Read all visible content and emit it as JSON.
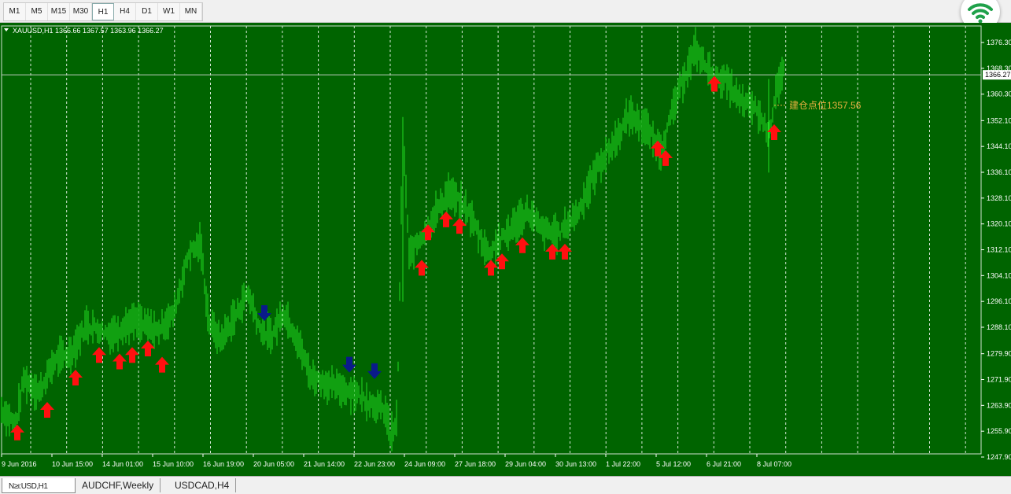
{
  "toolbar": {
    "timeframes": [
      "M1",
      "M5",
      "M15",
      "M30",
      "H1",
      "H4",
      "D1",
      "W1",
      "MN"
    ],
    "active_timeframe": "H1"
  },
  "chart": {
    "header": "XAUUSD,H1  1366.66 1367.57 1363.96 1366.27",
    "current_price_label": "1366.27",
    "annotation": "建仓点位1357.56",
    "colors": {
      "background": "#006400",
      "bars": "#22dd22",
      "grid": "#d8e8d8",
      "up_arrow": "#ff1010",
      "down_arrow": "#0a1a8a",
      "annotation": "#e8b040"
    }
  },
  "chart_data": {
    "type": "bar",
    "instrument": "XAUUSD",
    "timeframe": "H1",
    "ohlc_last": {
      "open": 1366.66,
      "high": 1367.57,
      "low": 1363.96,
      "close": 1366.27
    },
    "y_ticks": [
      "1376.30",
      "1368.30",
      "1360.30",
      "1352.10",
      "1344.10",
      "1336.10",
      "1328.10",
      "1320.10",
      "1312.10",
      "1304.10",
      "1296.10",
      "1288.10",
      "1279.90",
      "1271.90",
      "1263.90",
      "1255.90",
      "1247.90"
    ],
    "ylim": [
      1247.9,
      1376.3
    ],
    "x_ticks": [
      "9 Jun 2016",
      "10 Jun 15:00",
      "14 Jun 01:00",
      "15 Jun 10:00",
      "16 Jun 19:00",
      "20 Jun 05:00",
      "21 Jun 14:00",
      "22 Jun 23:00",
      "24 Jun 09:00",
      "27 Jun 18:00",
      "29 Jun 04:00",
      "30 Jun 13:00",
      "1 Jul 22:00",
      "5 Jul 12:00",
      "6 Jul 21:00",
      "8 Jul 07:00"
    ],
    "price_path": [
      [
        0,
        1263
      ],
      [
        20,
        1258
      ],
      [
        30,
        1272
      ],
      [
        50,
        1268
      ],
      [
        70,
        1278
      ],
      [
        90,
        1280
      ],
      [
        110,
        1289
      ],
      [
        140,
        1286
      ],
      [
        170,
        1290
      ],
      [
        200,
        1287
      ],
      [
        220,
        1292
      ],
      [
        240,
        1311
      ],
      [
        255,
        1314
      ],
      [
        265,
        1290
      ],
      [
        280,
        1284
      ],
      [
        300,
        1292
      ],
      [
        315,
        1299
      ],
      [
        330,
        1288
      ],
      [
        345,
        1285
      ],
      [
        360,
        1293
      ],
      [
        375,
        1286
      ],
      [
        395,
        1273
      ],
      [
        420,
        1270
      ],
      [
        450,
        1268
      ],
      [
        470,
        1265
      ],
      [
        490,
        1262
      ],
      [
        498,
        1252
      ],
      [
        505,
        1262
      ],
      [
        512,
        1350
      ],
      [
        520,
        1310
      ],
      [
        545,
        1320
      ],
      [
        570,
        1330
      ],
      [
        595,
        1324
      ],
      [
        620,
        1311
      ],
      [
        640,
        1316
      ],
      [
        670,
        1324
      ],
      [
        690,
        1318
      ],
      [
        710,
        1317
      ],
      [
        735,
        1324
      ],
      [
        760,
        1338
      ],
      [
        780,
        1345
      ],
      [
        800,
        1354
      ],
      [
        820,
        1350
      ],
      [
        840,
        1343
      ],
      [
        860,
        1359
      ],
      [
        870,
        1366
      ],
      [
        884,
        1374
      ],
      [
        905,
        1366
      ],
      [
        925,
        1364
      ],
      [
        940,
        1358
      ],
      [
        960,
        1356
      ],
      [
        978,
        1348
      ],
      [
        986,
        1362
      ],
      [
        996,
        1367
      ]
    ],
    "buy_signals": [
      [
        22,
        1256
      ],
      [
        60,
        1263
      ],
      [
        96,
        1273
      ],
      [
        126,
        1280
      ],
      [
        152,
        1278
      ],
      [
        168,
        1280
      ],
      [
        188,
        1282
      ],
      [
        206,
        1277
      ],
      [
        536,
        1307
      ],
      [
        544,
        1318
      ],
      [
        567,
        1322
      ],
      [
        584,
        1320
      ],
      [
        624,
        1307
      ],
      [
        638,
        1309
      ],
      [
        664,
        1314
      ],
      [
        702,
        1312
      ],
      [
        718,
        1312
      ],
      [
        836,
        1344
      ],
      [
        846,
        1341
      ],
      [
        908,
        1364
      ],
      [
        984,
        1349
      ]
    ],
    "sell_signals": [
      [
        336,
        1292
      ],
      [
        444,
        1276
      ],
      [
        476,
        1274
      ]
    ],
    "current_price": 1366.27,
    "entry_level": 1357.56
  }
}
